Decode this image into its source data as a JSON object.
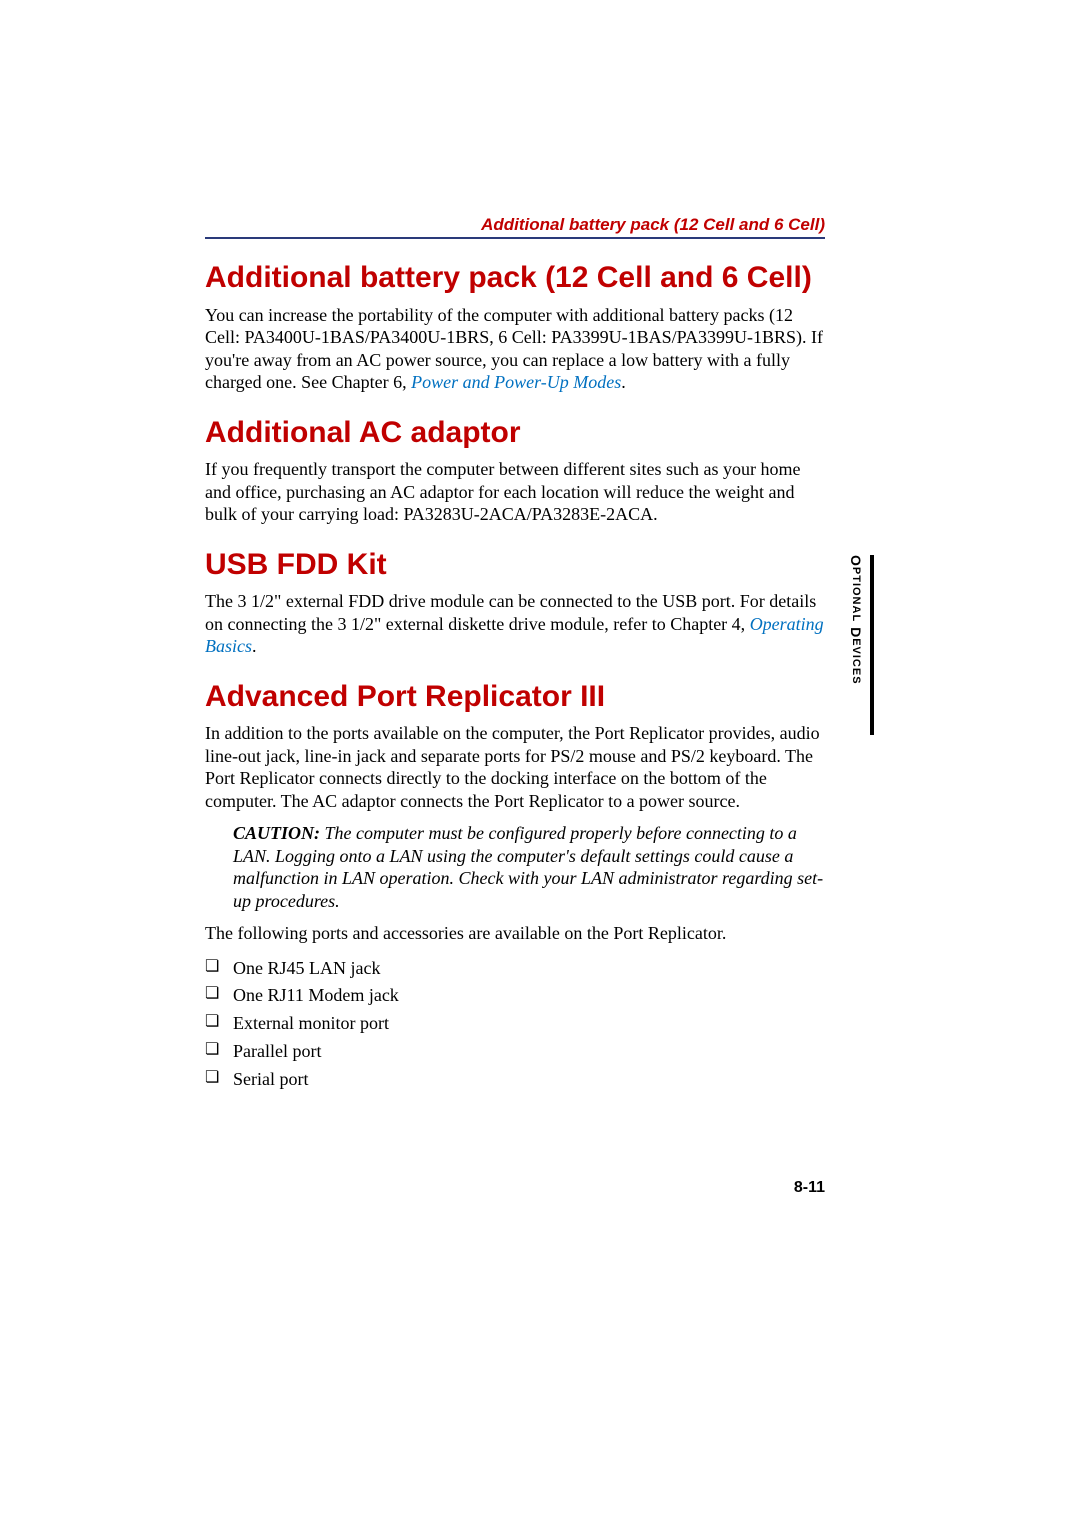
{
  "colors": {
    "heading": "#c00000",
    "rule": "#2a3a7a",
    "link": "#0070c0",
    "body": "#000000",
    "background": "#ffffff"
  },
  "typography": {
    "heading_font": "Arial",
    "heading_size_pt": 22,
    "body_font": "Times New Roman",
    "body_size_pt": 13,
    "running_header_size_pt": 13
  },
  "running_header": "Additional battery pack (12 Cell and 6 Cell)",
  "sections": {
    "battery": {
      "title": "Additional battery pack (12 Cell and 6 Cell)",
      "body_pre": "You can increase the portability of the computer with additional battery packs (12 Cell: PA3400U-1BAS/PA3400U-1BRS, 6 Cell: PA3399U-1BAS/PA3399U-1BRS). If you're away from an AC power source, you can replace a low battery with a fully charged one. See Chapter 6, ",
      "link": "Power and Power-Up Modes",
      "body_post": "."
    },
    "ac": {
      "title": "Additional AC adaptor",
      "body": "If you frequently transport the computer between different sites such as your home and office, purchasing an AC adaptor for each location will reduce the weight and bulk of your carrying load: PA3283U-2ACA/PA3283E-2ACA."
    },
    "fdd": {
      "title": "USB FDD Kit",
      "body_pre": "The 3 1/2\" external FDD drive module can be connected to the USB port. For details on connecting the 3 1/2\" external diskette drive module, refer to Chapter 4, ",
      "link": "Operating Basics",
      "body_post": "."
    },
    "replicator": {
      "title": "Advanced Port Replicator III",
      "body": "In addition to the ports available on the computer, the Port Replicator provides, audio line-out jack, line-in jack and separate ports for PS/2 mouse and PS/2 keyboard. The Port Replicator connects directly to the docking interface on the bottom of the computer. The AC adaptor connects the Port Replicator to a power source.",
      "caution_label": "CAUTION:",
      "caution_body": " The computer must be configured properly before connecting to a LAN. Logging onto a LAN using the computer's default settings could cause a malfunction in LAN operation. Check with your LAN administrator regarding set-up procedures.",
      "ports_intro": "The following ports and accessories are available on the Port Replicator.",
      "ports": [
        "One RJ45 LAN jack",
        "One RJ11 Modem jack",
        "External monitor port",
        "Parallel port",
        "Serial port"
      ]
    }
  },
  "side_tab": {
    "word1_initial": "O",
    "word1_rest": "PTIONAL",
    "word2_initial": "D",
    "word2_rest": "EVICES"
  },
  "page_number": "8-11"
}
